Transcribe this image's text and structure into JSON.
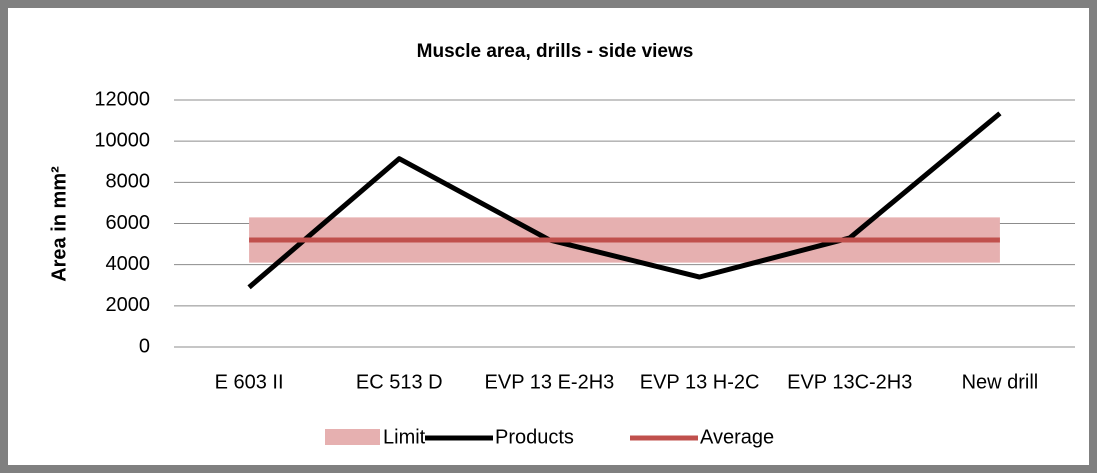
{
  "chart_data": {
    "type": "line",
    "title": "Muscle area, drills - side views",
    "y_label": "Area in mm²",
    "categories": [
      "E 603 II",
      "EC 513 D",
      "EVP 13 E-2H3",
      "EVP 13 H-2C",
      "EVP 13C-2H3",
      "New drill"
    ],
    "series": [
      {
        "name": "Limit",
        "color": "#e6b0b0",
        "values_low": [
          4100,
          4100,
          4100,
          4100,
          4100,
          4100
        ],
        "values_high": [
          6300,
          6300,
          6300,
          6300,
          6300,
          6300
        ]
      },
      {
        "name": "Products",
        "color": "#000000",
        "values": [
          2900,
          9150,
          5200,
          3400,
          5300,
          11350
        ]
      },
      {
        "name": "Average",
        "color": "#c0504d",
        "values": [
          5200,
          5200,
          5200,
          5200,
          5200,
          5200
        ]
      }
    ],
    "ylim": [
      0,
      12000
    ],
    "yticks": [
      0,
      2000,
      4000,
      6000,
      8000,
      10000,
      12000
    ],
    "grid": true,
    "legend": "bottom"
  }
}
